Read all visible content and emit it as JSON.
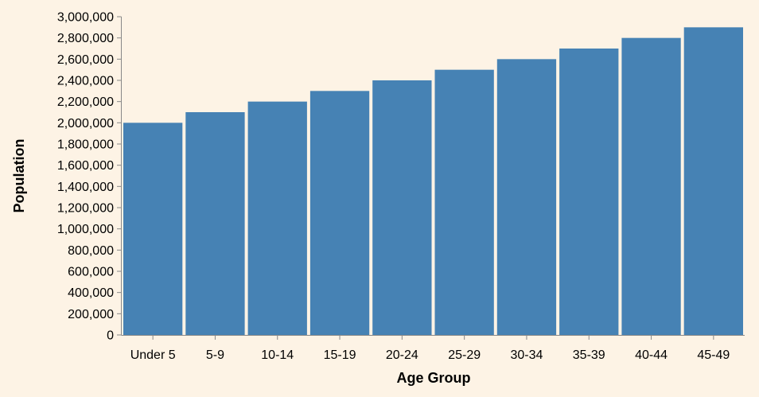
{
  "chart_data": {
    "type": "bar",
    "title": "",
    "xlabel": "Age Group",
    "ylabel": "Population",
    "categories": [
      "Under 5",
      "5-9",
      "10-14",
      "15-19",
      "20-24",
      "25-29",
      "30-34",
      "35-39",
      "40-44",
      "45-49"
    ],
    "values": [
      2000000,
      2100000,
      2200000,
      2300000,
      2400000,
      2500000,
      2600000,
      2700000,
      2800000,
      2900000
    ],
    "ylim": [
      0,
      3000000
    ],
    "y_ticks": [
      "0",
      "200,000",
      "400,000",
      "600,000",
      "800,000",
      "1,000,000",
      "1,200,000",
      "1,400,000",
      "1,600,000",
      "1,800,000",
      "2,000,000",
      "2,200,000",
      "2,400,000",
      "2,600,000",
      "2,800,000",
      "3,000,000"
    ],
    "grid": false,
    "legend": "none",
    "colors": {
      "bar": "#4682b4",
      "axis": "#888888",
      "background": "#fdf3e5"
    }
  }
}
